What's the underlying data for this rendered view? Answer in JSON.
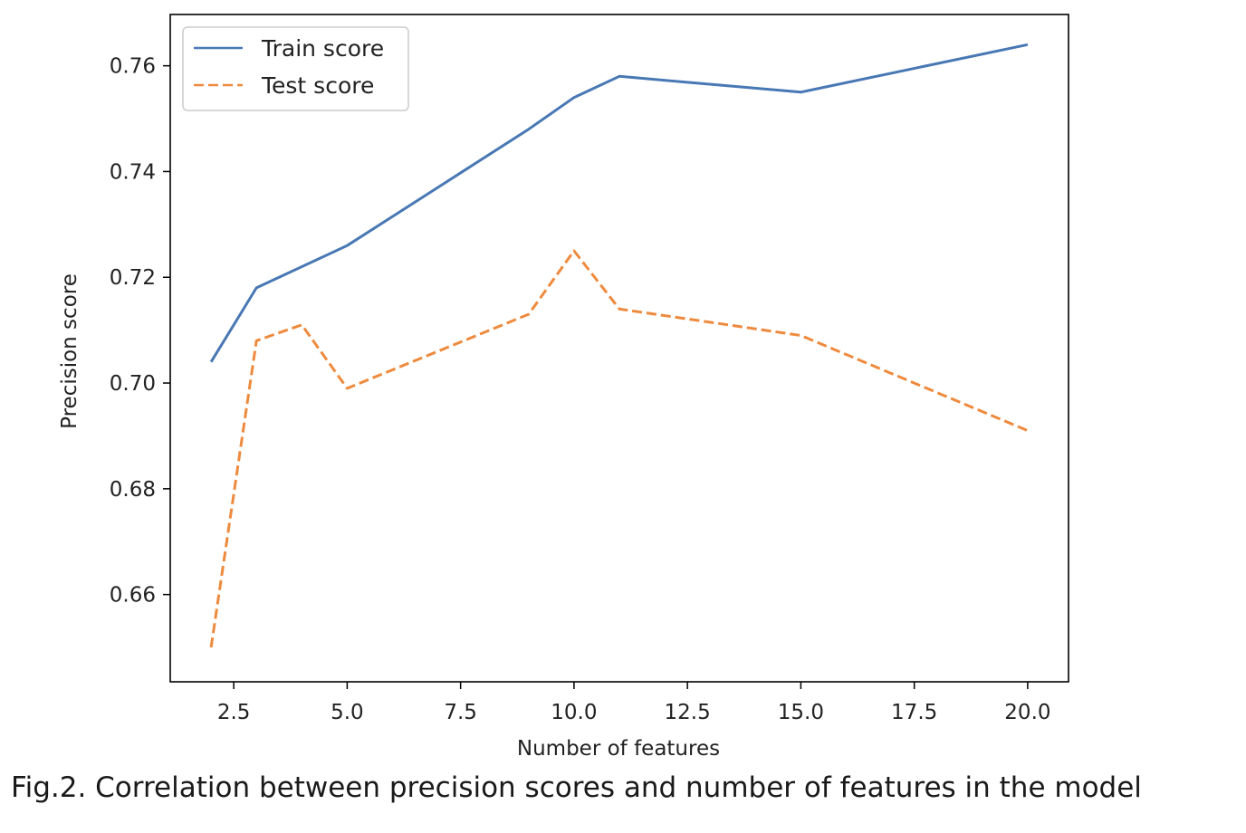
{
  "caption": "Fig.2. Correlation between precision scores and number of features in the model",
  "chart_data": {
    "type": "line",
    "title": "",
    "xlabel": "Number of features",
    "ylabel": "Precision score",
    "xlim": [
      1.1,
      20.9
    ],
    "ylim": [
      0.6435,
      0.7697
    ],
    "xticks": [
      2.5,
      5.0,
      7.5,
      10.0,
      12.5,
      15.0,
      17.5,
      20.0
    ],
    "xtick_labels": [
      "2.5",
      "5.0",
      "7.5",
      "10.0",
      "12.5",
      "15.0",
      "17.5",
      "20.0"
    ],
    "yticks": [
      0.66,
      0.68,
      0.7,
      0.72,
      0.74,
      0.76
    ],
    "ytick_labels": [
      "0.66",
      "0.68",
      "0.70",
      "0.72",
      "0.74",
      "0.76"
    ],
    "grid": false,
    "legend_position": "upper-left",
    "series": [
      {
        "name": "Train score",
        "color": "#4878b4",
        "style": "solid",
        "x": [
          2,
          3,
          5,
          7,
          9,
          10,
          11,
          15,
          20
        ],
        "y": [
          0.704,
          0.718,
          0.726,
          0.737,
          0.748,
          0.754,
          0.758,
          0.755,
          0.764
        ]
      },
      {
        "name": "Test score",
        "color": "#ee8a3d",
        "style": "dashed",
        "x": [
          2,
          3,
          4,
          5,
          7,
          9,
          10,
          11,
          15,
          20
        ],
        "y": [
          0.65,
          0.708,
          0.711,
          0.699,
          0.706,
          0.713,
          0.725,
          0.714,
          0.709,
          0.691
        ]
      }
    ]
  }
}
